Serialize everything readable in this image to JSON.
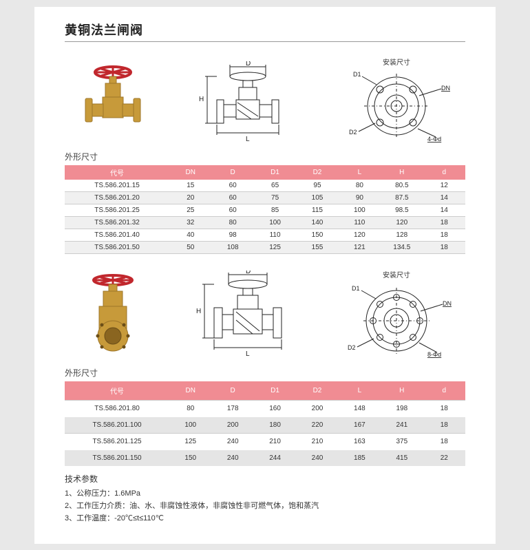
{
  "title": "黄铜法兰闸阀",
  "section_label": "外形尺寸",
  "flange_label": "安装尺寸",
  "dim_labels": {
    "D": "D",
    "H": "H",
    "L": "L",
    "D1": "D1",
    "D2": "D2",
    "DN": "DN"
  },
  "holes4": "4-Φd",
  "holes8": "8-Φd",
  "table1": {
    "headers": [
      "代号",
      "DN",
      "D",
      "D1",
      "D2",
      "L",
      "H",
      "d"
    ],
    "rows": [
      [
        "TS.586.201.15",
        "15",
        "60",
        "65",
        "95",
        "80",
        "80.5",
        "12"
      ],
      [
        "TS.586.201.20",
        "20",
        "60",
        "75",
        "105",
        "90",
        "87.5",
        "14"
      ],
      [
        "TS.586.201.25",
        "25",
        "60",
        "85",
        "115",
        "100",
        "98.5",
        "14"
      ],
      [
        "TS.586.201.32",
        "32",
        "80",
        "100",
        "140",
        "110",
        "120",
        "18"
      ],
      [
        "TS.586.201.40",
        "40",
        "98",
        "110",
        "150",
        "120",
        "128",
        "18"
      ],
      [
        "TS.586.201.50",
        "50",
        "108",
        "125",
        "155",
        "121",
        "134.5",
        "18"
      ]
    ]
  },
  "table2": {
    "headers": [
      "代号",
      "DN",
      "D",
      "D1",
      "D2",
      "L",
      "H",
      "d"
    ],
    "rows": [
      [
        "TS.586.201.80",
        "80",
        "178",
        "160",
        "200",
        "148",
        "198",
        "18"
      ],
      [
        "TS.586.201.100",
        "100",
        "200",
        "180",
        "220",
        "167",
        "241",
        "18"
      ],
      [
        "TS.586.201.125",
        "125",
        "240",
        "210",
        "210",
        "163",
        "375",
        "18"
      ],
      [
        "TS.586.201.150",
        "150",
        "240",
        "244",
        "240",
        "185",
        "415",
        "22"
      ]
    ]
  },
  "specs": {
    "heading": "技术参数",
    "lines": [
      "1、公称压力：1.6MPa",
      "2、工作压力介质：油、水、非腐蚀性液体，非腐蚀性非可燃气体，饱和蒸汽",
      "3、工作温度：-20℃≤t≤110℃"
    ]
  },
  "colors": {
    "header_bg": "#f08c93",
    "brass": "#c79a3a",
    "brass_dark": "#9e7628",
    "handwheel": "#c1272d",
    "line": "#222222"
  }
}
